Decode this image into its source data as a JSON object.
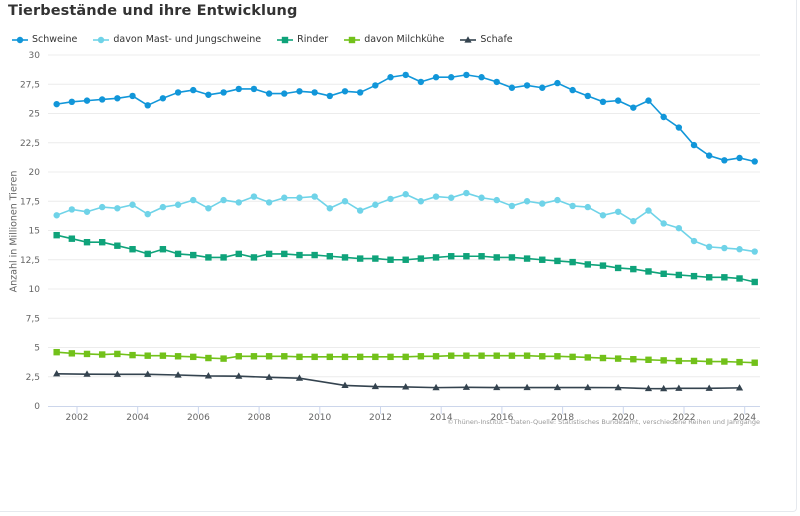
{
  "page": {
    "title": "Tierbestände und ihre Entwicklung",
    "credit": "©Thünen-Institut – Daten-Quelle: Statistisches Bundesamt, verschiedene Reihen und Jahrgänge"
  },
  "chart_data": {
    "type": "line",
    "title": "Tierbestände und ihre Entwicklung",
    "xlabel": "",
    "ylabel": "Anzahl in Millionen Tieren",
    "ylim": [
      0,
      30
    ],
    "xlim": [
      2001.0,
      2024.7
    ],
    "yticks": [
      0,
      2.5,
      5,
      7.5,
      10,
      12.5,
      15,
      17.5,
      20,
      22.5,
      25,
      27.5,
      30
    ],
    "ytick_labels": [
      "0",
      "2,5",
      "5",
      "7,5",
      "10",
      "12,5",
      "15",
      "17,5",
      "20",
      "22,5",
      "25",
      "27,5",
      "30"
    ],
    "xticks": [
      2002,
      2004,
      2006,
      2008,
      2010,
      2012,
      2014,
      2016,
      2018,
      2020,
      2022,
      2024
    ],
    "xtick_labels": [
      "2002",
      "2004",
      "2006",
      "2008",
      "2010",
      "2012",
      "2014",
      "2016",
      "2018",
      "2020",
      "2022",
      "2024"
    ],
    "grid": "horizontal",
    "legend_position": "top-left",
    "series": [
      {
        "name": "Schweine",
        "color": "#1196d9",
        "marker": "circle",
        "x_start": 2001.33,
        "x_step": 0.5,
        "values": [
          25.8,
          26.0,
          26.1,
          26.2,
          26.3,
          26.5,
          25.7,
          26.3,
          26.8,
          27.0,
          26.6,
          26.8,
          27.1,
          27.1,
          26.7,
          26.7,
          26.9,
          26.8,
          26.5,
          26.9,
          26.8,
          27.4,
          28.1,
          28.3,
          27.7,
          28.1,
          28.1,
          28.3,
          28.1,
          27.7,
          27.2,
          27.4,
          27.2,
          27.6,
          27.0,
          26.5,
          26.0,
          26.1,
          25.5,
          26.1,
          24.7,
          23.8,
          22.3,
          21.4,
          21.0,
          21.2,
          20.9
        ]
      },
      {
        "name": "davon Mast- und Jungschweine",
        "color": "#6fd3e8",
        "marker": "circle",
        "x_start": 2001.33,
        "x_step": 0.5,
        "values": [
          16.3,
          16.8,
          16.6,
          17.0,
          16.9,
          17.2,
          16.4,
          17.0,
          17.2,
          17.6,
          16.9,
          17.6,
          17.4,
          17.9,
          17.4,
          17.8,
          17.8,
          17.9,
          16.9,
          17.5,
          16.7,
          17.2,
          17.7,
          18.1,
          17.5,
          17.9,
          17.8,
          18.2,
          17.8,
          17.6,
          17.1,
          17.5,
          17.3,
          17.6,
          17.1,
          17.0,
          16.3,
          16.6,
          15.8,
          16.7,
          15.6,
          15.2,
          14.1,
          13.6,
          13.5,
          13.4,
          13.2
        ]
      },
      {
        "name": "Rinder",
        "color": "#0fa37a",
        "marker": "square",
        "x_start": 2001.33,
        "x_step": 0.5,
        "values": [
          14.6,
          14.3,
          14.0,
          14.0,
          13.7,
          13.4,
          13.0,
          13.4,
          13.0,
          12.9,
          12.7,
          12.7,
          13.0,
          12.7,
          13.0,
          13.0,
          12.9,
          12.9,
          12.8,
          12.7,
          12.6,
          12.6,
          12.5,
          12.5,
          12.6,
          12.7,
          12.8,
          12.8,
          12.8,
          12.7,
          12.7,
          12.6,
          12.5,
          12.4,
          12.3,
          12.1,
          12.0,
          11.8,
          11.7,
          11.5,
          11.3,
          11.2,
          11.1,
          11.0,
          11.0,
          10.9,
          10.6
        ]
      },
      {
        "name": "davon Milchkühe",
        "color": "#72c11a",
        "marker": "square",
        "x_start": 2001.33,
        "x_step": 0.5,
        "values": [
          4.6,
          4.5,
          4.45,
          4.4,
          4.45,
          4.35,
          4.3,
          4.3,
          4.25,
          4.2,
          4.1,
          4.05,
          4.25,
          4.25,
          4.25,
          4.25,
          4.2,
          4.2,
          4.2,
          4.2,
          4.2,
          4.2,
          4.2,
          4.2,
          4.25,
          4.25,
          4.3,
          4.3,
          4.3,
          4.3,
          4.3,
          4.3,
          4.25,
          4.25,
          4.2,
          4.15,
          4.1,
          4.05,
          4.0,
          3.95,
          3.9,
          3.85,
          3.85,
          3.8,
          3.8,
          3.75,
          3.7
        ]
      },
      {
        "name": "Schafe",
        "color": "#34434f",
        "marker": "triangle",
        "x": [
          2001.33,
          2002.33,
          2003.33,
          2004.33,
          2005.33,
          2006.33,
          2007.33,
          2008.33,
          2009.33,
          2010.83,
          2011.83,
          2012.83,
          2013.83,
          2014.83,
          2015.83,
          2016.83,
          2017.83,
          2018.83,
          2019.83,
          2020.83,
          2021.33,
          2021.83,
          2022.83,
          2023.83
        ],
        "values": [
          2.75,
          2.72,
          2.71,
          2.71,
          2.65,
          2.57,
          2.55,
          2.45,
          2.38,
          1.76,
          1.66,
          1.63,
          1.57,
          1.6,
          1.58,
          1.58,
          1.58,
          1.58,
          1.57,
          1.49,
          1.48,
          1.51,
          1.51,
          1.55
        ]
      }
    ]
  }
}
